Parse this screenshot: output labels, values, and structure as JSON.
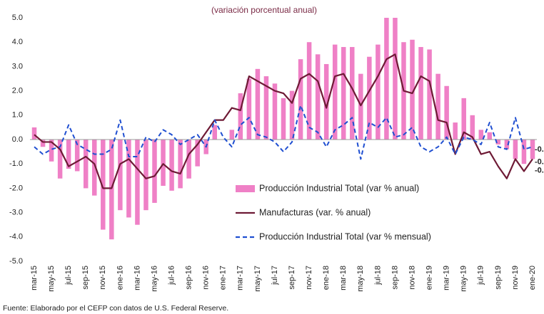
{
  "chart_data": {
    "type": "bar",
    "title": "(variación porcentual anual)",
    "source": "Fuente: Elaborado por el CEFP con datos de U.S. Federal Reserve.",
    "categories": [
      "mar-15",
      null,
      "may-15",
      null,
      "jul-15",
      null,
      "sep-15",
      null,
      "nov-15",
      null,
      "ene-16",
      null,
      "mar-16",
      null,
      "may-16",
      null,
      "jul-16",
      null,
      "sep-16",
      null,
      "nov-16",
      null,
      "ene-17",
      null,
      "mar-17",
      null,
      "may-17",
      null,
      "jul-17",
      null,
      "sep-17",
      null,
      "nov-17",
      null,
      "ene-18",
      null,
      "mar-18",
      null,
      "may-18",
      null,
      "jul-18",
      null,
      "sep-18",
      null,
      "nov-18",
      null,
      "ene-19",
      null,
      "mar-19",
      null,
      "may-19",
      null,
      "jul-19",
      null,
      "sep-19",
      null,
      "nov-19",
      null,
      "ene-20"
    ],
    "series": [
      {
        "name": "Producción Industrial Total (var % anual)",
        "type": "bar",
        "color": "#ef80c6",
        "values": [
          0.5,
          -0.3,
          -0.9,
          -1.6,
          -1.2,
          -1.3,
          -2.0,
          -2.3,
          -3.7,
          -4.1,
          -2.9,
          -3.2,
          -3.5,
          -2.9,
          -2.6,
          -1.9,
          -2.1,
          -2.0,
          -1.6,
          -1.1,
          -0.6,
          0.6,
          0.0,
          0.4,
          1.9,
          2.5,
          2.9,
          2.6,
          2.3,
          1.7,
          2.0,
          3.3,
          4.0,
          3.5,
          3.1,
          3.9,
          3.8,
          3.8,
          2.7,
          3.4,
          3.9,
          5.0,
          5.0,
          4.0,
          4.1,
          3.8,
          3.7,
          2.7,
          2.2,
          0.7,
          1.7,
          1.0,
          0.4,
          0.3,
          -0.2,
          -0.4,
          -0.8,
          -1.0,
          -0.8
        ]
      },
      {
        "name": "Manufacturas (var. % anual)",
        "type": "line",
        "color": "#6e1a35",
        "values": [
          0.2,
          -0.1,
          -0.1,
          -0.4,
          -1.1,
          -0.9,
          -0.7,
          -1.0,
          -2.0,
          -2.0,
          -1.0,
          -0.8,
          -1.2,
          -1.6,
          -1.5,
          -1.0,
          -1.3,
          -1.4,
          -0.6,
          -0.2,
          0.3,
          0.8,
          0.8,
          1.3,
          1.2,
          2.6,
          2.4,
          2.2,
          2.0,
          1.9,
          1.5,
          2.5,
          2.7,
          2.4,
          1.3,
          2.6,
          2.7,
          2.1,
          1.4,
          2.0,
          2.6,
          3.3,
          3.5,
          2.0,
          1.9,
          2.6,
          2.4,
          0.8,
          0.7,
          -0.6,
          0.3,
          0.1,
          -0.6,
          -0.5,
          -1.1,
          -1.6,
          -0.8,
          -1.3,
          -0.8
        ]
      },
      {
        "name": "Producción Industrial Total (var % mensual)",
        "type": "line",
        "dashed": true,
        "color": "#1f4fd1",
        "values": [
          -0.3,
          -0.6,
          -0.4,
          -0.3,
          0.6,
          -0.2,
          -0.4,
          -0.6,
          -0.6,
          -0.4,
          0.8,
          -0.7,
          -0.7,
          0.1,
          -0.1,
          0.4,
          0.2,
          -0.2,
          0.0,
          0.2,
          -0.3,
          0.8,
          0.1,
          -0.3,
          0.6,
          0.9,
          0.2,
          0.1,
          -0.1,
          -0.5,
          -0.1,
          1.4,
          0.5,
          0.3,
          -0.3,
          0.4,
          0.6,
          0.9,
          -0.8,
          0.7,
          0.5,
          0.9,
          0.1,
          0.2,
          0.5,
          -0.3,
          -0.5,
          -0.3,
          0.1,
          -0.6,
          0.1,
          0.0,
          -0.2,
          0.7,
          -0.3,
          -0.4,
          0.9,
          -0.4,
          -0.3
        ]
      }
    ],
    "ylim": [
      -5,
      5
    ],
    "yticks": [
      {
        "value": 5,
        "label": "5.0"
      },
      {
        "value": 4,
        "label": "4.0"
      },
      {
        "value": 3,
        "label": "3.0"
      },
      {
        "value": 2,
        "label": "2.0"
      },
      {
        "value": 1,
        "label": "1.0"
      },
      {
        "value": 0,
        "label": "0.0"
      },
      {
        "value": -1,
        "label": "-1.0"
      },
      {
        "value": -2,
        "label": "-2.0"
      },
      {
        "value": -3,
        "label": "-3.0"
      },
      {
        "value": -4,
        "label": "-4.0"
      },
      {
        "value": -5,
        "label": "-5.0"
      }
    ],
    "grid": false,
    "legend": "center-right",
    "end_labels": true
  }
}
